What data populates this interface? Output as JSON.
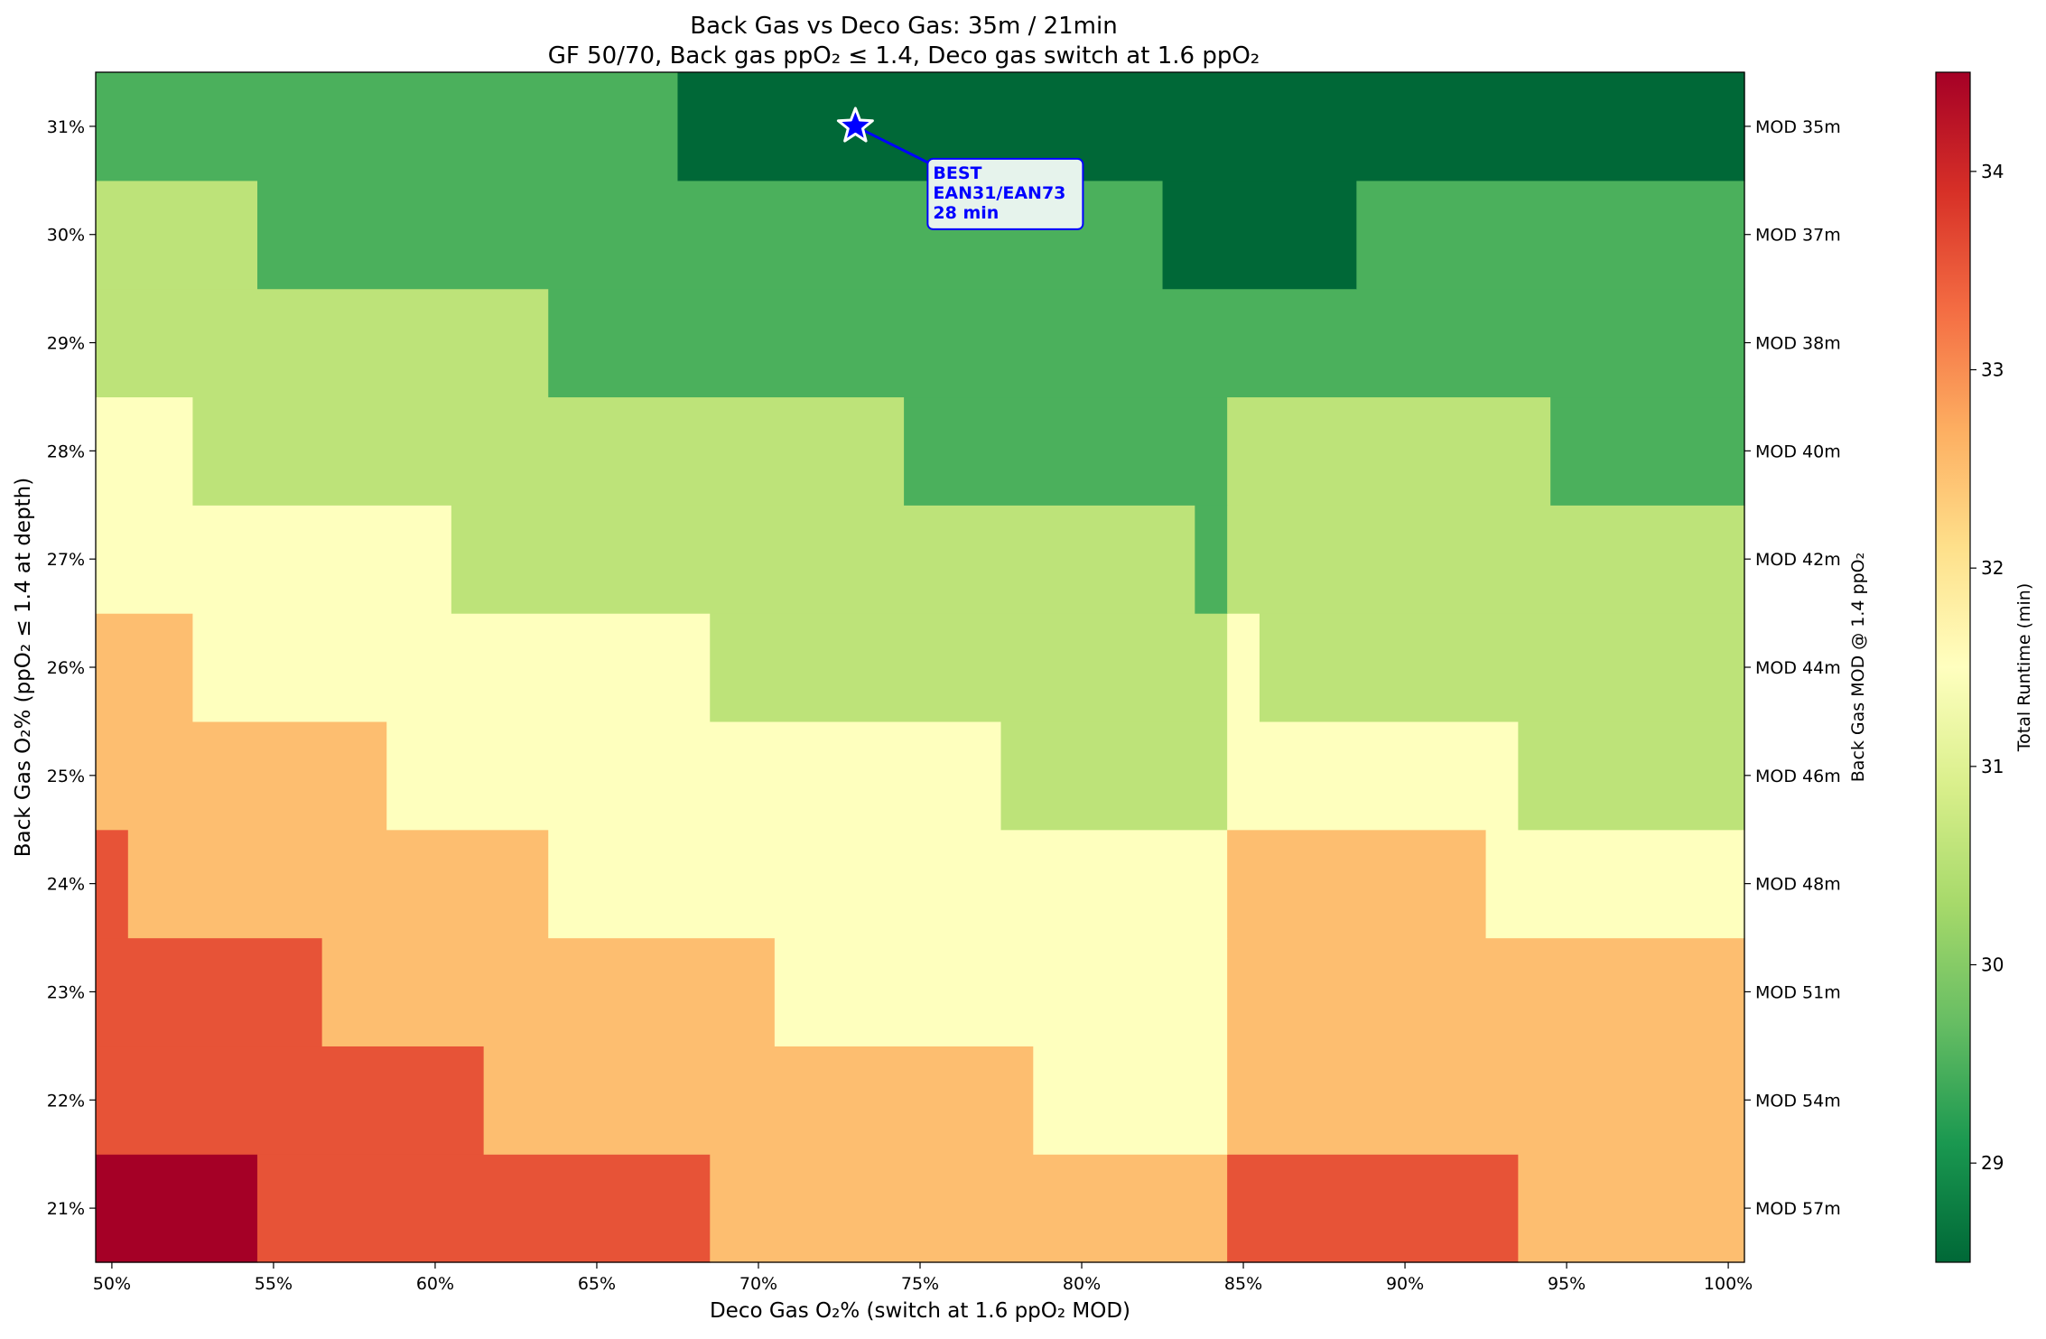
{
  "chart_data": {
    "type": "heatmap",
    "title": "Back Gas vs Deco Gas: 35m / 21min",
    "subtitle": "GF 50/70, Back gas ppO₂ ≤ 1.4, Deco gas switch at 1.6 ppO₂",
    "xlabel": "Deco Gas O₂% (switch at 1.6 ppO₂ MOD)",
    "ylabel": "Back Gas O₂% (ppO₂ ≤ 1.4 at depth)",
    "right_ylabel": "Back Gas MOD @ 1.4 ppO₂",
    "colorbar_label": "Total Runtime (min)",
    "colormap": "RdYlGn_r",
    "x_values": [
      50,
      51,
      52,
      53,
      54,
      55,
      56,
      57,
      58,
      59,
      60,
      61,
      62,
      63,
      64,
      65,
      66,
      67,
      68,
      69,
      70,
      71,
      72,
      73,
      74,
      75,
      76,
      77,
      78,
      79,
      80,
      81,
      82,
      83,
      84,
      85,
      86,
      87,
      88,
      89,
      90,
      91,
      92,
      93,
      94,
      95,
      96,
      97,
      98,
      99,
      100
    ],
    "x_tick_values": [
      50,
      55,
      60,
      65,
      70,
      75,
      80,
      85,
      90,
      95,
      100
    ],
    "x_tick_labels": [
      "50%",
      "55%",
      "60%",
      "65%",
      "70%",
      "75%",
      "80%",
      "85%",
      "90%",
      "95%",
      "100%"
    ],
    "y_values": [
      21,
      22,
      23,
      24,
      25,
      26,
      27,
      28,
      29,
      30,
      31
    ],
    "y_tick_labels": [
      "21%",
      "22%",
      "23%",
      "24%",
      "25%",
      "26%",
      "27%",
      "28%",
      "29%",
      "30%",
      "31%"
    ],
    "right_tick_labels": [
      "MOD 57m",
      "MOD 54m",
      "MOD 51m",
      "MOD 48m",
      "MOD 46m",
      "MOD 44m",
      "MOD 42m",
      "MOD 40m",
      "MOD 38m",
      "MOD 37m",
      "MOD 35m"
    ],
    "z_runs": [
      [
        [
          50,
          54,
          34
        ],
        [
          55,
          68,
          33
        ],
        [
          69,
          84,
          32
        ],
        [
          85,
          93,
          33
        ],
        [
          94,
          100,
          32
        ]
      ],
      [
        [
          50,
          61,
          33
        ],
        [
          62,
          78,
          32
        ],
        [
          79,
          84,
          31
        ],
        [
          85,
          100,
          32
        ]
      ],
      [
        [
          50,
          56,
          33
        ],
        [
          57,
          70,
          32
        ],
        [
          71,
          84,
          31
        ],
        [
          85,
          100,
          32
        ]
      ],
      [
        [
          50,
          50,
          33
        ],
        [
          51,
          63,
          32
        ],
        [
          64,
          84,
          31
        ],
        [
          85,
          92,
          32
        ],
        [
          93,
          100,
          31
        ]
      ],
      [
        [
          50,
          58,
          32
        ],
        [
          59,
          77,
          31
        ],
        [
          78,
          84,
          30
        ],
        [
          85,
          93,
          31
        ],
        [
          94,
          100,
          30
        ]
      ],
      [
        [
          50,
          52,
          32
        ],
        [
          53,
          68,
          31
        ],
        [
          69,
          84,
          30
        ],
        [
          85,
          85,
          31
        ],
        [
          86,
          100,
          30
        ]
      ],
      [
        [
          50,
          60,
          31
        ],
        [
          61,
          83,
          30
        ],
        [
          84,
          84,
          29
        ],
        [
          85,
          100,
          30
        ]
      ],
      [
        [
          50,
          52,
          31
        ],
        [
          53,
          74,
          30
        ],
        [
          75,
          84,
          29
        ],
        [
          85,
          94,
          30
        ],
        [
          95,
          100,
          29
        ]
      ],
      [
        [
          50,
          63,
          30
        ],
        [
          64,
          100,
          29
        ]
      ],
      [
        [
          50,
          54,
          30
        ],
        [
          55,
          82,
          29
        ],
        [
          83,
          88,
          28
        ],
        [
          89,
          100,
          29
        ]
      ],
      [
        [
          50,
          67,
          29
        ],
        [
          68,
          100,
          28
        ]
      ]
    ],
    "clim": [
      28.5,
      34.5
    ],
    "colorbar_ticks": [
      29,
      30,
      31,
      32,
      33,
      34
    ],
    "colorbar_tick_labels": [
      "29",
      "30",
      "31",
      "32",
      "33",
      "34"
    ],
    "best": {
      "x": 73,
      "y": 31,
      "label_lines": [
        "BEST",
        "EAN31/EAN73",
        "28 min"
      ]
    },
    "colors": {
      "28": "#006837",
      "29": "#4bb05c",
      "30": "#bde379",
      "31": "#feffbe",
      "32": "#fdbe70",
      "33": "#e75337",
      "34": "#a50026",
      "annotation": "#0000ff",
      "annotation_box_fill": "#e6f3ec"
    }
  }
}
